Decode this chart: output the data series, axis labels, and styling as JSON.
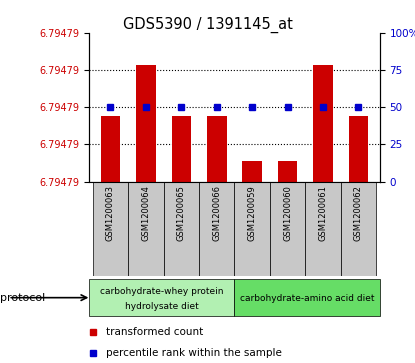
{
  "title": "GDS5390 / 1391145_at",
  "samples": [
    "GSM1200063",
    "GSM1200064",
    "GSM1200065",
    "GSM1200066",
    "GSM1200059",
    "GSM1200060",
    "GSM1200061",
    "GSM1200062"
  ],
  "red_bar_values": [
    44,
    78,
    44,
    44,
    14,
    14,
    78,
    44
  ],
  "blue_square_values": [
    50,
    50,
    50,
    50,
    50,
    50,
    50,
    50
  ],
  "left_yticks": [
    0,
    25,
    50,
    75,
    100
  ],
  "left_yticklabels": [
    "6.79479",
    "6.79479",
    "6.79479",
    "6.79479",
    "6.79479"
  ],
  "right_yticks": [
    0,
    25,
    50,
    75,
    100
  ],
  "right_yticklabels": [
    "0",
    "25",
    "50",
    "75",
    "100%"
  ],
  "group1_label_line1": "carbohydrate-whey protein",
  "group1_label_line2": "hydrolysate diet",
  "group2_label": "carbohydrate-amino acid diet",
  "group1_samples": 4,
  "group2_samples": 4,
  "group1_color": "#b2f0b2",
  "group2_color": "#66dd66",
  "protocol_label": "protocol",
  "legend_red_label": "transformed count",
  "legend_blue_label": "percentile rank within the sample",
  "bar_color": "#cc0000",
  "square_color": "#0000cc",
  "tick_label_bg": "#c8c8c8",
  "ylim": [
    0,
    100
  ],
  "bar_width": 0.55,
  "grid_lines": [
    25,
    50,
    75
  ]
}
